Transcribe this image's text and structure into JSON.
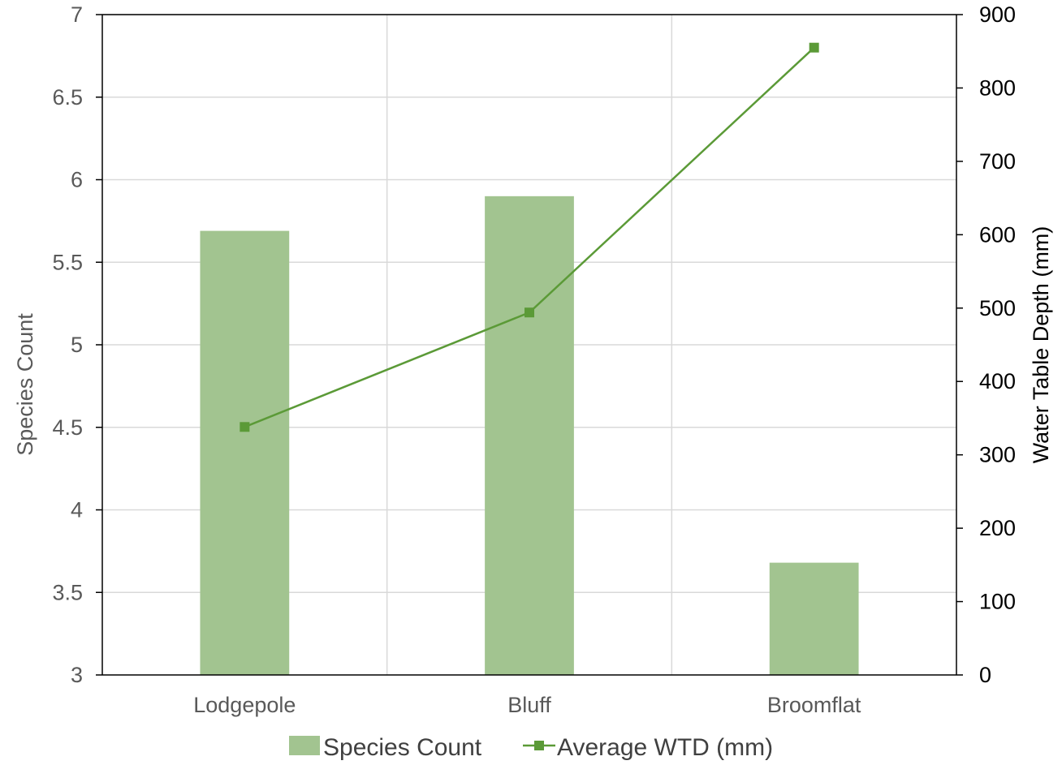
{
  "chart_data": {
    "type": "bar+line",
    "categories": [
      "Lodgepole",
      "Bluff",
      "Broomflat"
    ],
    "series": [
      {
        "name": "Species Count",
        "type": "bar",
        "axis": "left",
        "values": [
          5.69,
          5.9,
          3.68
        ]
      },
      {
        "name": "Average WTD (mm)",
        "type": "line",
        "axis": "right",
        "marker": "square",
        "values": [
          338,
          494,
          855
        ]
      }
    ],
    "y_left": {
      "label": "Species Count",
      "min": 3,
      "max": 7,
      "ticks": [
        "3",
        "3.5",
        "4",
        "4.5",
        "5",
        "5.5",
        "6",
        "6.5",
        "7"
      ]
    },
    "y_right": {
      "label": "Water Table Depth (mm)",
      "min": 0,
      "max": 900,
      "ticks": [
        "0",
        "100",
        "200",
        "300",
        "400",
        "500",
        "600",
        "700",
        "800",
        "900"
      ]
    },
    "grid": true,
    "legend_position": "bottom",
    "colors": {
      "bar": "#a2c490",
      "line": "#5b9a37",
      "grid": "#d9d9d9",
      "axis": "#000000"
    }
  }
}
